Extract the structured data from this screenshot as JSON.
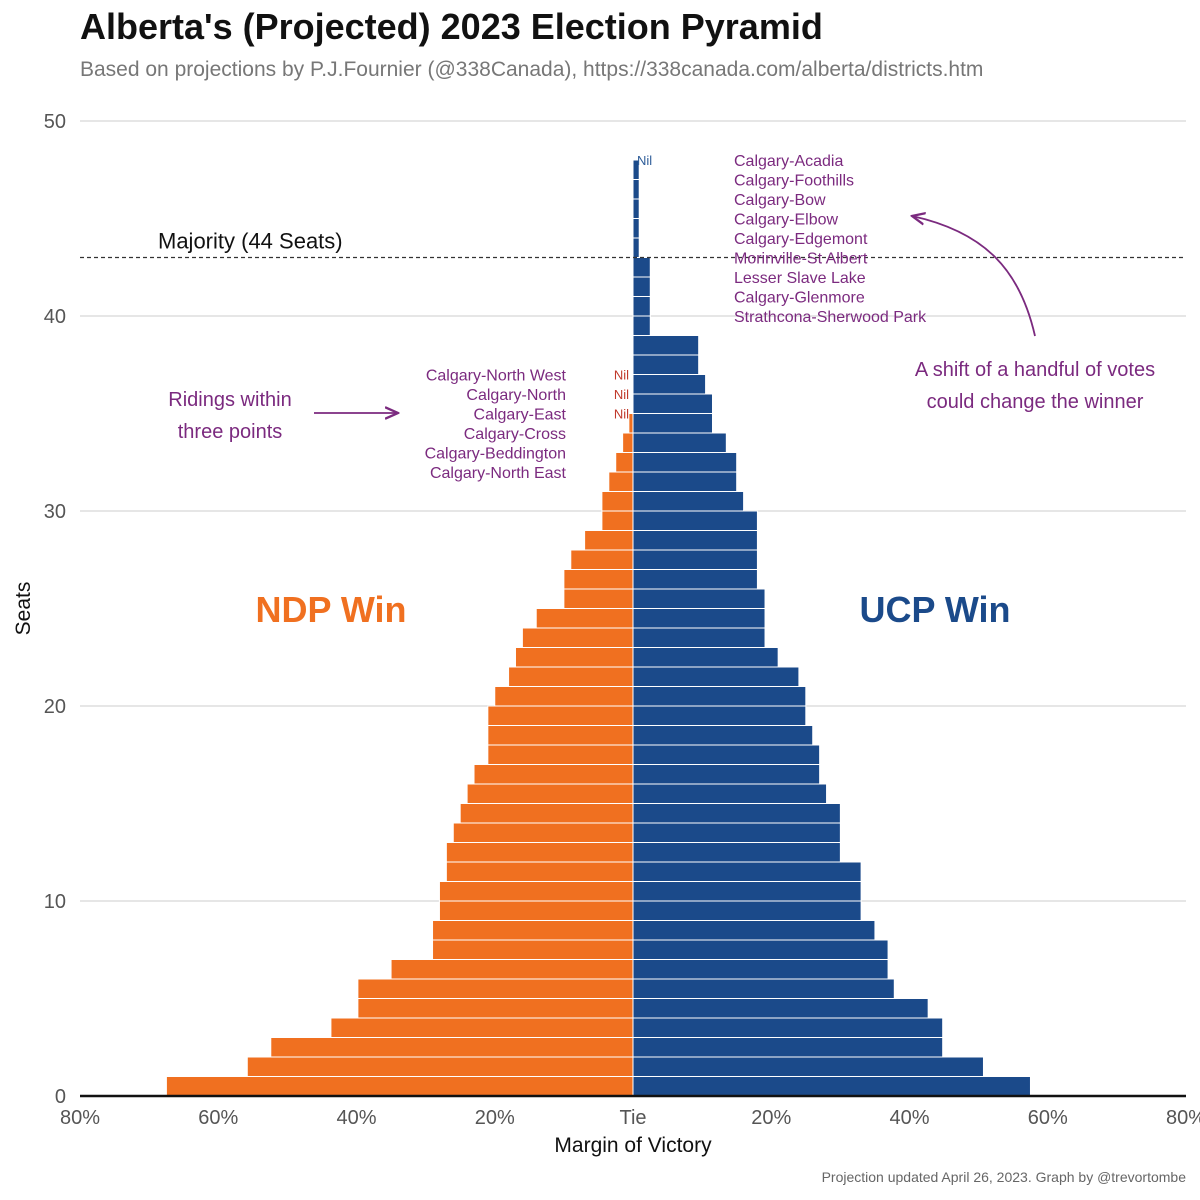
{
  "header": {
    "title": "Alberta's (Projected) 2023 Election Pyramid",
    "subtitle": "Based on projections by P.J.Fournier (@338Canada), https://338canada.com/alberta/districts.htm"
  },
  "footer": {
    "caption": "Projection updated April 26, 2023. Graph by @trevortombe"
  },
  "chart_data": {
    "type": "bar",
    "orientation": "horizontal-pyramid",
    "xlabel": "Margin of Victory",
    "ylabel": "Seats",
    "xlim": [
      -80,
      80
    ],
    "ylim": [
      0,
      50
    ],
    "x_ticks": [
      "80%",
      "60%",
      "40%",
      "20%",
      "Tie",
      "20%",
      "40%",
      "60%",
      "80%"
    ],
    "y_ticks": [
      "0",
      "10",
      "20",
      "30",
      "40",
      "50"
    ],
    "grid": "horizontal",
    "colors": {
      "ndp": "#f07020",
      "ucp": "#1b4a8a",
      "annotation": "#7b2a7f",
      "nil": "#c0392b",
      "nil_ucp": "#2e5d99",
      "majority_line": "#333333"
    },
    "series": [
      {
        "name": "NDP Win",
        "values": [
          67.5,
          55.8,
          52.4,
          43.7,
          39.8,
          39.8,
          35.0,
          29.0,
          29.0,
          28.0,
          28.0,
          27.0,
          27.0,
          26.0,
          25.0,
          24.0,
          23.0,
          21.0,
          21.0,
          21.0,
          20.0,
          18.0,
          17.0,
          16.0,
          14.0,
          10.0,
          10.0,
          9.0,
          7.0,
          4.5,
          4.5,
          3.5,
          2.5,
          1.5,
          0.6
        ]
      },
      {
        "name": "UCP Win",
        "values": [
          57.5,
          50.7,
          44.8,
          44.8,
          42.7,
          37.8,
          36.9,
          36.9,
          35.0,
          33.0,
          33.0,
          33.0,
          30.0,
          30.0,
          30.0,
          28.0,
          27.0,
          27.0,
          26.0,
          25.0,
          25.0,
          24.0,
          21.0,
          19.1,
          19.1,
          19.1,
          18.0,
          18.0,
          18.0,
          18.0,
          16.0,
          15.0,
          15.0,
          13.5,
          11.5,
          11.5,
          10.5,
          9.5,
          9.5,
          2.5,
          2.5,
          2.5,
          2.5,
          0.9,
          0.9,
          0.9,
          0.9,
          0.9
        ]
      }
    ],
    "labels": {
      "majority": "Majority (44 Seats)",
      "majority_seats": 43,
      "ndp_win": "NDP Win",
      "ucp_win": "UCP Win",
      "nil": "Nil",
      "ridings_note": [
        "Ridings within",
        "three points"
      ],
      "shift_note": [
        "A shift of a handful of votes",
        "could change the winner"
      ],
      "ndp_close_ridings": [
        "Calgary-North West",
        "Calgary-North",
        "Calgary-East",
        "Calgary-Cross",
        "Calgary-Beddington",
        "Calgary-North East"
      ],
      "ucp_close_ridings": [
        "Calgary-Acadia",
        "Calgary-Foothills",
        "Calgary-Bow",
        "Calgary-Elbow",
        "Calgary-Edgemont",
        "Morinville-St Albert",
        "Lesser Slave Lake",
        "Calgary-Glenmore",
        "Strathcona-Sherwood Park"
      ]
    }
  }
}
